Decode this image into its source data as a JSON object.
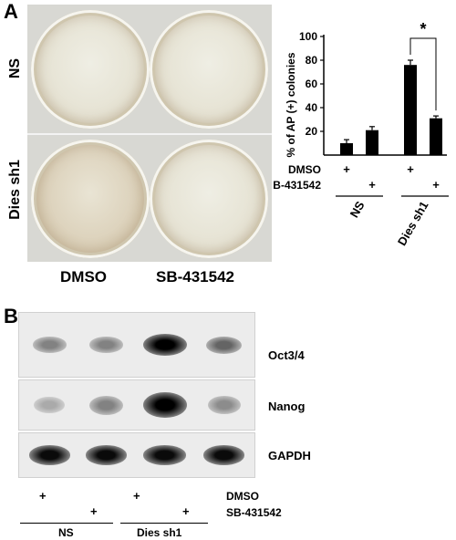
{
  "panel_a": {
    "label": "A",
    "row_labels": [
      "NS",
      "Dies sh1"
    ],
    "column_labels": [
      "DMSO",
      "SB-431542"
    ]
  },
  "chart_data": {
    "type": "bar",
    "ylabel": "% of AP (+) colonies",
    "xlabel": "",
    "ylim": [
      0,
      100
    ],
    "yticks": [
      20,
      40,
      60,
      80,
      100
    ],
    "categories": [
      "NS DMSO",
      "NS SB-431542",
      "Dies sh1 DMSO",
      "Dies sh1 SB-431542"
    ],
    "values": [
      10,
      21,
      76,
      31
    ],
    "errors": [
      3,
      3,
      4,
      2
    ],
    "treatment_rows": [
      {
        "name": "DMSO",
        "marks": [
          "+",
          "",
          "+",
          ""
        ]
      },
      {
        "name": "SB-431542",
        "marks": [
          "",
          "+",
          "",
          "+"
        ]
      }
    ],
    "groups": [
      "NS",
      "Dies sh1"
    ],
    "significance": "*",
    "bar_color": "#000000"
  },
  "panel_b": {
    "label": "B",
    "blots": [
      {
        "name": "Oct3/4",
        "intensities": [
          0.35,
          0.35,
          1.0,
          0.5
        ]
      },
      {
        "name": "Nanog",
        "intensities": [
          0.15,
          0.35,
          1.0,
          0.3
        ]
      },
      {
        "name": "GAPDH",
        "intensities": [
          0.95,
          0.95,
          0.95,
          0.95
        ]
      }
    ],
    "treatment_rows": [
      {
        "name": "DMSO",
        "marks": [
          "+",
          "",
          "+",
          ""
        ]
      },
      {
        "name": "SB-431542",
        "marks": [
          "",
          "+",
          "",
          "+"
        ]
      }
    ],
    "groups": [
      "NS",
      "Dies sh1"
    ]
  }
}
